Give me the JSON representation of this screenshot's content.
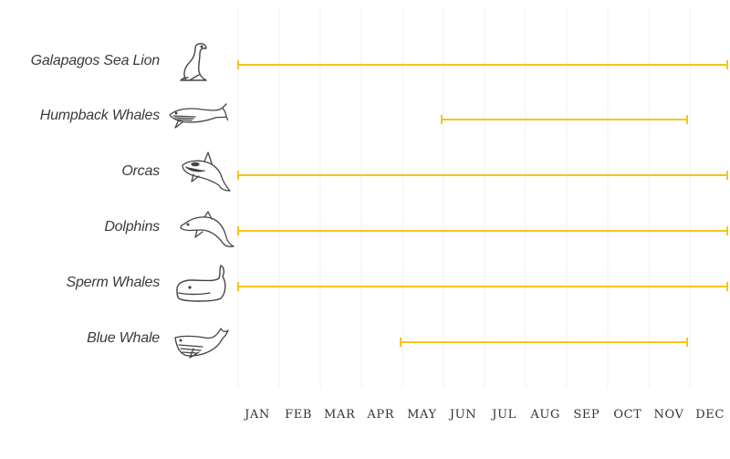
{
  "chart_data": {
    "type": "timeline-range",
    "categories": [
      "Galapagos Sea Lion",
      "Humpback Whales",
      "Orcas",
      "Dolphins",
      "Sperm Whales",
      "Blue Whale"
    ],
    "months": [
      "JAN",
      "FEB",
      "MAR",
      "APR",
      "MAY",
      "JUN",
      "JUL",
      "AUG",
      "SEP",
      "OCT",
      "NOV",
      "DEC"
    ],
    "ranges": [
      {
        "name": "Galapagos Sea Lion",
        "start": 1,
        "end": 12
      },
      {
        "name": "Humpback Whales",
        "start": 6,
        "end": 11
      },
      {
        "name": "Orcas",
        "start": 1,
        "end": 12
      },
      {
        "name": "Dolphins",
        "start": 1,
        "end": 12
      },
      {
        "name": "Sperm Whales",
        "start": 1,
        "end": 12
      },
      {
        "name": "Blue Whale",
        "start": 5,
        "end": 11
      }
    ],
    "icons": [
      "sea-lion-icon",
      "humpback-whale-icon",
      "orca-icon",
      "dolphin-icon",
      "sperm-whale-icon",
      "blue-whale-icon"
    ],
    "bar_color": "#f5c518",
    "grid": true
  }
}
